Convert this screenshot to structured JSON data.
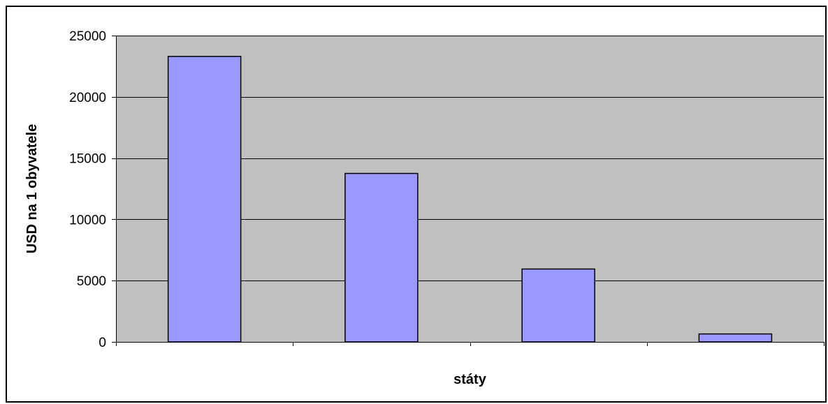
{
  "chart_data": {
    "type": "bar",
    "categories": [
      "",
      "",
      "",
      ""
    ],
    "values": [
      23300,
      13750,
      5950,
      650
    ],
    "xlabel": "státy",
    "ylabel": "USD na 1 obyvatele",
    "ylim": [
      0,
      25000
    ],
    "yticks": [
      0,
      5000,
      10000,
      15000,
      20000,
      25000
    ],
    "ytick_labels": [
      "0",
      "5000",
      "10000",
      "15000",
      "20000",
      "25000"
    ],
    "grid": true,
    "legend": "none",
    "colors": {
      "plot_background": "#c0c0c0",
      "bar_fill": "#9999ff",
      "bar_stroke": "#000000",
      "gridline": "#000000"
    }
  }
}
